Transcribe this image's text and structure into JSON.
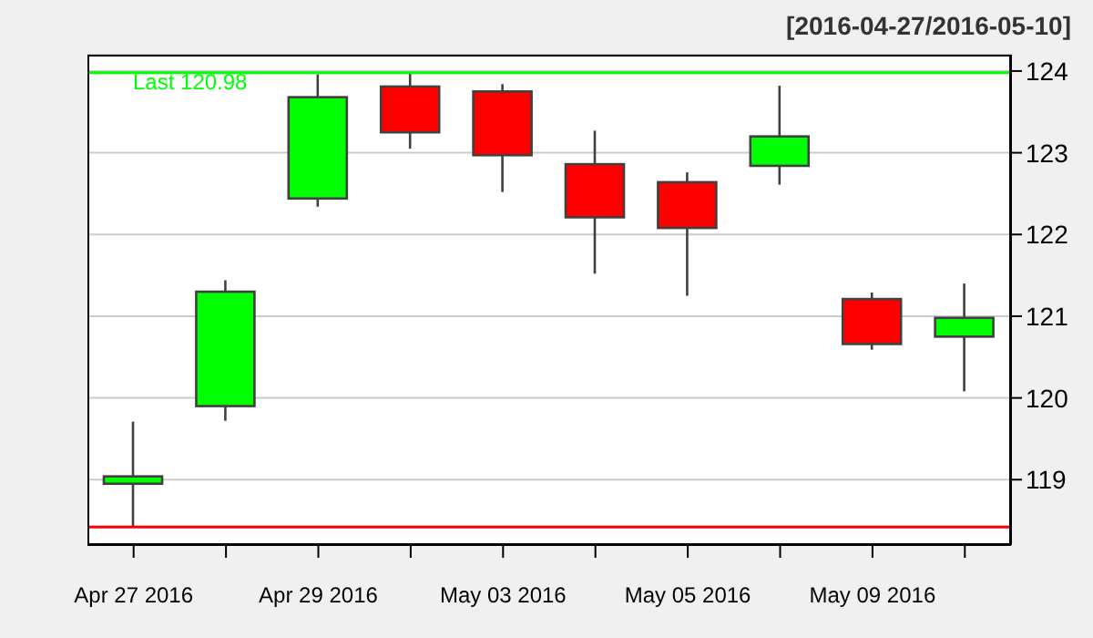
{
  "chart_data": {
    "type": "candlestick",
    "subtitle": "[2016-04-27/2016-05-10]",
    "categories": [
      "Apr 27 2016",
      null,
      "Apr 29 2016",
      null,
      "May 03 2016",
      null,
      "May 05 2016",
      null,
      "May 09 2016",
      null
    ],
    "ohlc": [
      [
        118.95,
        119.71,
        118.42,
        119.04
      ],
      [
        119.9,
        121.44,
        119.72,
        121.3
      ],
      [
        122.44,
        123.96,
        122.34,
        123.68
      ],
      [
        123.81,
        123.98,
        123.05,
        123.25
      ],
      [
        123.75,
        123.84,
        122.52,
        122.97
      ],
      [
        122.86,
        123.27,
        121.52,
        122.21
      ],
      [
        122.64,
        122.76,
        121.25,
        122.08
      ],
      [
        122.84,
        123.82,
        122.61,
        123.2
      ],
      [
        121.21,
        121.29,
        120.59,
        120.66
      ],
      [
        120.75,
        121.4,
        120.08,
        120.98
      ]
    ],
    "colors": [
      "#00ff00",
      "#00ff00",
      "#00ff00",
      "#ff0000",
      "#ff0000",
      "#ff0000",
      "#ff0000",
      "#00ff00",
      "#ff0000",
      "#00ff00"
    ],
    "ylim": [
      118.2,
      124.2
    ],
    "yticks": [
      119,
      120,
      121,
      122,
      123,
      124
    ],
    "grid": "y",
    "ref_lines": [
      {
        "axis": "y",
        "value": 123.98,
        "label": "Last 120.98",
        "color": "#00ff00"
      },
      {
        "axis": "y",
        "value": 118.42,
        "label": null,
        "color": "#ff0000"
      }
    ]
  }
}
